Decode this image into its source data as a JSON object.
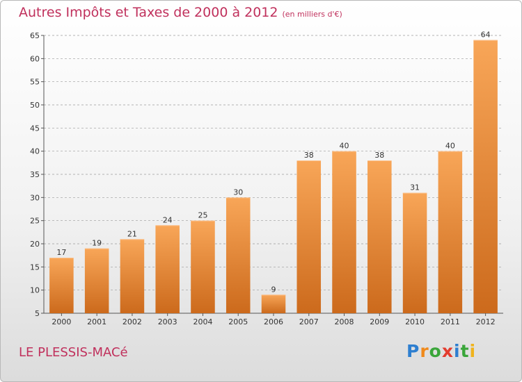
{
  "title": "Autres Impôts et Taxes de 2000 à 2012",
  "subtitle": "(en milliers d'€)",
  "place": "LE PLESSIS-MACé",
  "brand": {
    "letters": [
      "P",
      "r",
      "o",
      "x",
      "i",
      "t",
      "i"
    ],
    "colors": [
      "#2e7fd0",
      "#f08a1c",
      "#3aa63a",
      "#e33c2e",
      "#2e7fd0",
      "#3aa63a",
      "#f0b31c"
    ]
  },
  "colors": {
    "bar_top": "#f8a658",
    "bar_bottom": "#cc6a1c",
    "title": "#c0305c",
    "grid": "#9a9a9a"
  },
  "chart_data": {
    "type": "bar",
    "categories": [
      "2000",
      "2001",
      "2002",
      "2003",
      "2004",
      "2005",
      "2006",
      "2007",
      "2008",
      "2009",
      "2010",
      "2011",
      "2012"
    ],
    "values": [
      17,
      19,
      21,
      24,
      25,
      30,
      9,
      38,
      40,
      38,
      31,
      40,
      64
    ],
    "ylim": [
      5,
      65
    ],
    "yticks": [
      "5",
      "10",
      "15",
      "20",
      "25",
      "30",
      "35",
      "40",
      "45",
      "50",
      "55",
      "60",
      "65"
    ],
    "grid": true,
    "grid_style": "dashed",
    "data_labels": true
  }
}
